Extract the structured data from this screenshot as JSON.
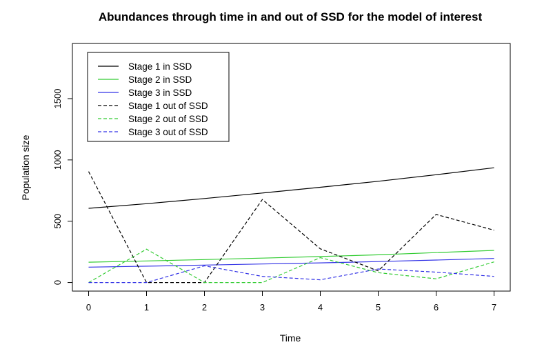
{
  "chart_data": {
    "type": "line",
    "title": "Abundances through time in and out of SSD for the model of interest",
    "xlabel": "Time",
    "ylabel": "Population size",
    "x": [
      0,
      1,
      2,
      3,
      4,
      5,
      6,
      7
    ],
    "xlim": [
      -0.28,
      7.28
    ],
    "ylim": [
      -70,
      1950
    ],
    "xticks": [
      0,
      1,
      2,
      3,
      4,
      5,
      6,
      7
    ],
    "yticks": [
      0,
      500,
      1000,
      1500
    ],
    "grid": false,
    "legend_position": "top-left",
    "series": [
      {
        "name": "Stage 1 in SSD",
        "color": "#000000",
        "dash": "solid",
        "values": [
          605,
          643,
          685,
          730,
          777,
          826,
          879,
          936
        ]
      },
      {
        "name": "Stage 2 in SSD",
        "color": "#33cc33",
        "dash": "solid",
        "values": [
          166,
          176,
          187,
          199,
          212,
          226,
          244,
          262
        ]
      },
      {
        "name": "Stage 3 in SSD",
        "color": "#3333e6",
        "dash": "solid",
        "values": [
          125,
          133,
          142,
          151,
          160,
          171,
          183,
          196
        ]
      },
      {
        "name": "Stage 1 out of SSD",
        "color": "#000000",
        "dash": "dashed",
        "values": [
          905,
          0,
          0,
          677,
          275,
          95,
          555,
          427
        ]
      },
      {
        "name": "Stage 2 out of SSD",
        "color": "#33cc33",
        "dash": "dashed",
        "values": [
          0,
          272,
          0,
          0,
          203,
          80,
          30,
          168
        ]
      },
      {
        "name": "Stage 3 out of SSD",
        "color": "#3333e6",
        "dash": "dashed",
        "values": [
          0,
          0,
          136,
          50,
          22,
          110,
          85,
          50
        ]
      }
    ]
  }
}
